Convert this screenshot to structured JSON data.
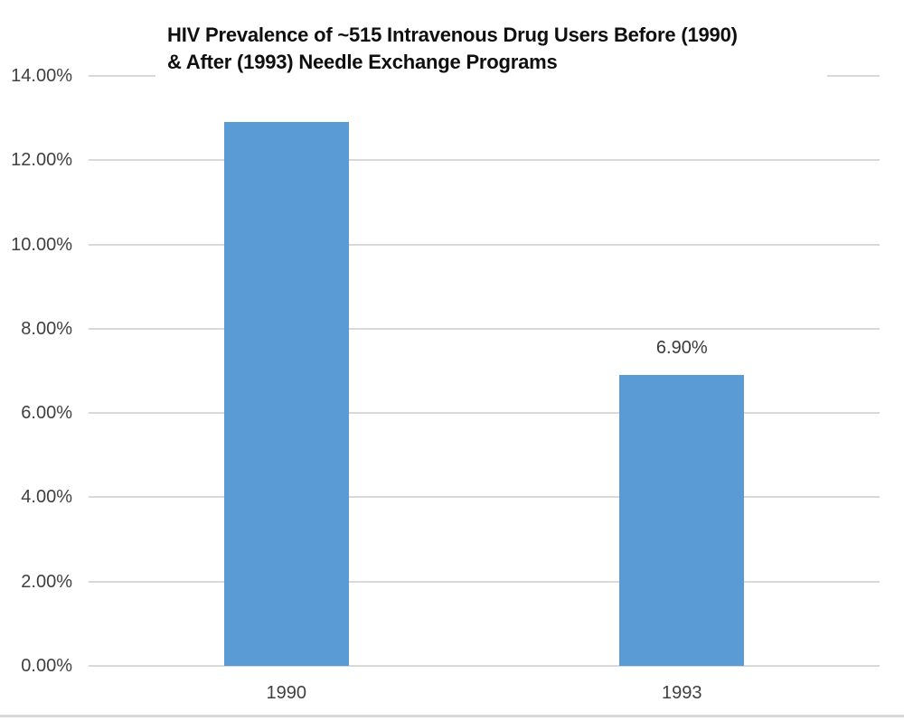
{
  "chart_data": {
    "type": "bar",
    "title": "HIV Prevalence of ~515 Intravenous Drug Users Before (1990) & After (1993) Needle Exchange Programs",
    "title_lines": [
      "HIV Prevalence of ~515 Intravenous Drug Users Before (1990)",
      "& After (1993) Needle Exchange Programs"
    ],
    "categories": [
      "1990",
      "1993"
    ],
    "values": [
      12.9,
      6.9
    ],
    "data_labels": [
      "",
      "6.90%"
    ],
    "xlabel": "",
    "ylabel": "",
    "ylim": [
      0,
      14
    ],
    "y_tick_step": 2,
    "y_tick_labels": [
      "0.00%",
      "2.00%",
      "4.00%",
      "6.00%",
      "8.00%",
      "10.00%",
      "12.00%",
      "14.00%"
    ],
    "legend": "none",
    "grid": true,
    "colors": {
      "bar": "#5B9BD5",
      "gridline": "#D9D9D9",
      "axis_text": "#404040",
      "title_text": "#0F0F0F",
      "data_label_text": "#3A3A3A",
      "background": "#FFFFFF",
      "bottom_border": "#D8D8D8"
    }
  }
}
